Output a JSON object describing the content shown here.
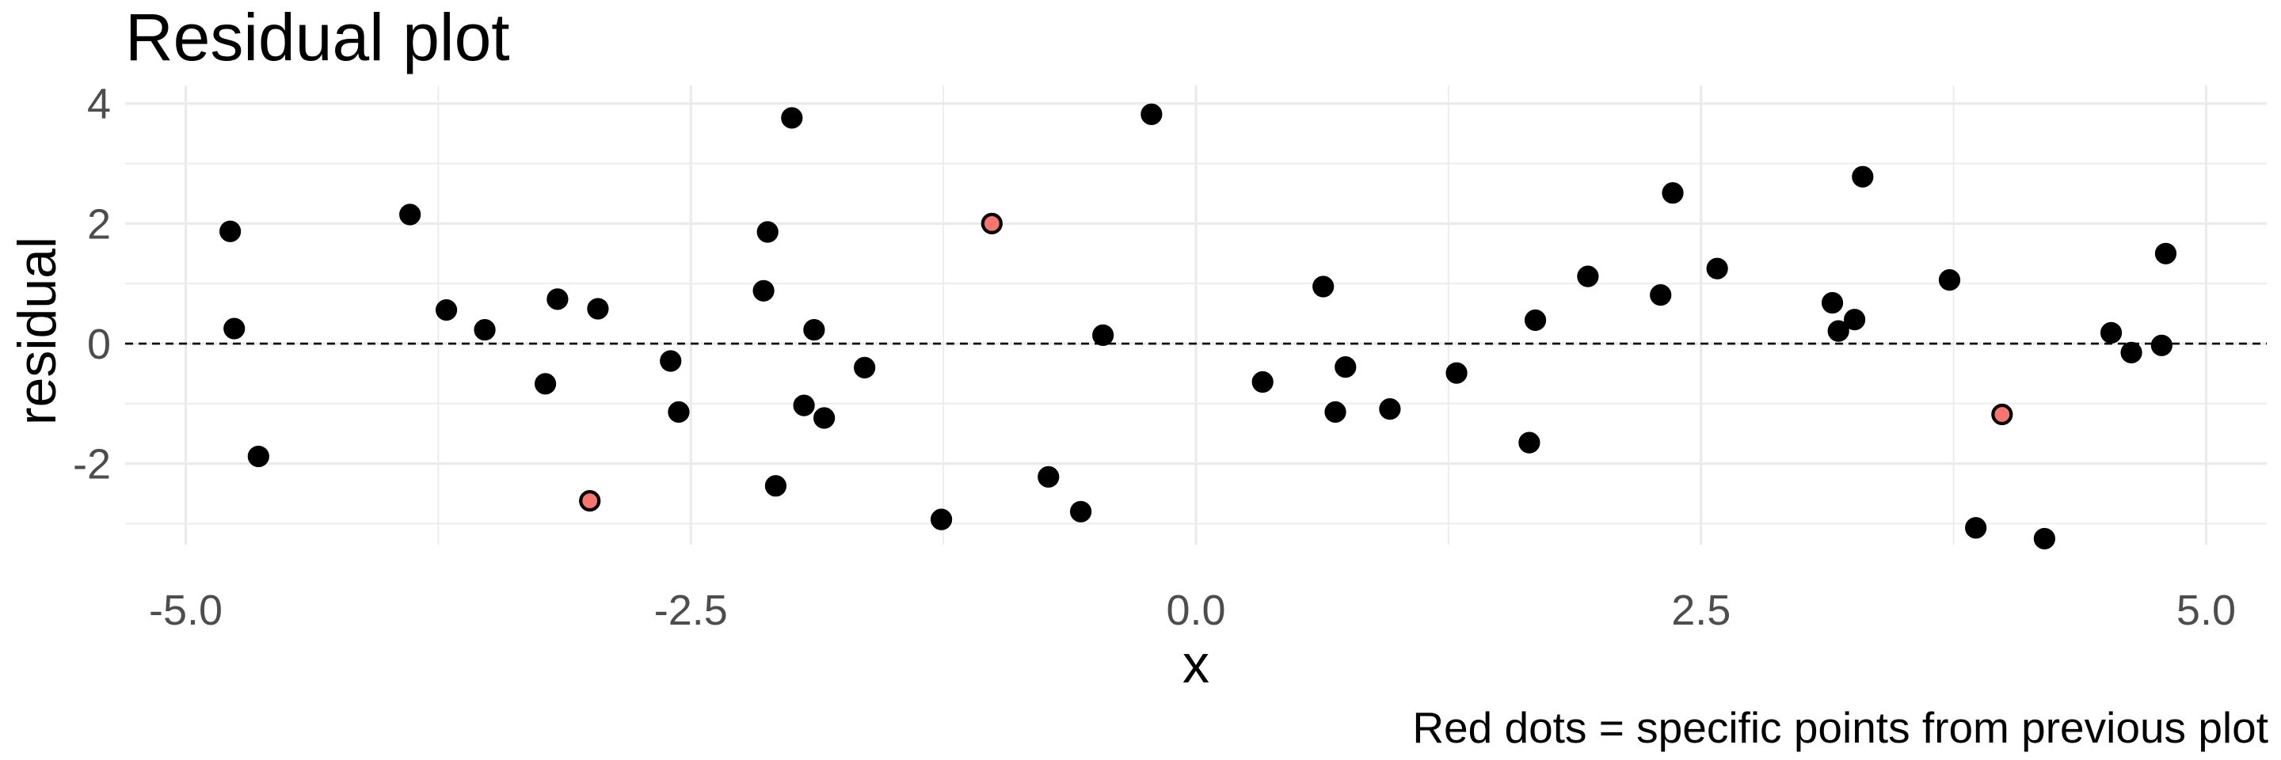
{
  "chart_data": {
    "type": "scatter",
    "title": "Residual plot",
    "xlabel": "x",
    "ylabel": "residual",
    "caption": "Red dots = specific points from previous plot",
    "xlim": [
      -5.3,
      5.3
    ],
    "ylim": [
      -3.35,
      4.3
    ],
    "x_ticks": [
      -5.0,
      -2.5,
      0.0,
      2.5,
      5.0
    ],
    "x_tick_labels": [
      "-5.0",
      "-2.5",
      "0.0",
      "2.5",
      "5.0"
    ],
    "x_minor_ticks": [
      -3.75,
      -1.25,
      1.25,
      3.75
    ],
    "y_ticks": [
      -2,
      0,
      2,
      4
    ],
    "y_tick_labels": [
      "-2",
      "0",
      "2",
      "4"
    ],
    "y_minor_ticks": [
      -3,
      -1,
      1,
      3
    ],
    "grid": true,
    "reference_line": {
      "y": 0,
      "style": "dashed",
      "color": "#000000"
    },
    "colors": {
      "default_point": "#000000",
      "highlight_point": "#f8766d",
      "grid": "#ebebeb"
    },
    "series": [
      {
        "role": "default",
        "points": [
          {
            "x": -4.78,
            "y": 1.87
          },
          {
            "x": -4.76,
            "y": 0.25
          },
          {
            "x": -4.64,
            "y": -1.88
          },
          {
            "x": -3.89,
            "y": 2.15
          },
          {
            "x": -3.71,
            "y": 0.56
          },
          {
            "x": -3.52,
            "y": 0.23
          },
          {
            "x": -3.22,
            "y": -0.67
          },
          {
            "x": -3.16,
            "y": 0.74
          },
          {
            "x": -2.96,
            "y": 0.58
          },
          {
            "x": -2.6,
            "y": -0.29
          },
          {
            "x": -2.56,
            "y": -1.14
          },
          {
            "x": -2.14,
            "y": 0.88
          },
          {
            "x": -2.12,
            "y": 1.86
          },
          {
            "x": -2.08,
            "y": -2.37
          },
          {
            "x": -2.0,
            "y": 3.76
          },
          {
            "x": -1.94,
            "y": -1.03
          },
          {
            "x": -1.89,
            "y": 0.23
          },
          {
            "x": -1.84,
            "y": -1.24
          },
          {
            "x": -1.64,
            "y": -0.4
          },
          {
            "x": -1.26,
            "y": -2.93
          },
          {
            "x": -0.73,
            "y": -2.22
          },
          {
            "x": -0.57,
            "y": -2.8
          },
          {
            "x": -0.46,
            "y": 0.14
          },
          {
            "x": -0.22,
            "y": 3.82
          },
          {
            "x": 0.33,
            "y": -0.64
          },
          {
            "x": 0.63,
            "y": 0.95
          },
          {
            "x": 0.69,
            "y": -1.14
          },
          {
            "x": 0.74,
            "y": -0.39
          },
          {
            "x": 0.96,
            "y": -1.09
          },
          {
            "x": 1.29,
            "y": -0.49
          },
          {
            "x": 1.65,
            "y": -1.65
          },
          {
            "x": 1.68,
            "y": 0.39
          },
          {
            "x": 1.94,
            "y": 1.12
          },
          {
            "x": 2.3,
            "y": 0.81
          },
          {
            "x": 2.36,
            "y": 2.51
          },
          {
            "x": 2.58,
            "y": 1.25
          },
          {
            "x": 3.15,
            "y": 0.68
          },
          {
            "x": 3.18,
            "y": 0.21
          },
          {
            "x": 3.26,
            "y": 0.4
          },
          {
            "x": 3.3,
            "y": 2.78
          },
          {
            "x": 3.73,
            "y": 1.06
          },
          {
            "x": 3.86,
            "y": -3.07
          },
          {
            "x": 4.2,
            "y": -3.25
          },
          {
            "x": 4.53,
            "y": 0.18
          },
          {
            "x": 4.63,
            "y": -0.15
          },
          {
            "x": 4.78,
            "y": -0.03
          },
          {
            "x": 4.8,
            "y": 1.5
          }
        ]
      },
      {
        "role": "highlight",
        "points": [
          {
            "x": -3.0,
            "y": -2.62
          },
          {
            "x": -1.01,
            "y": 2.0
          },
          {
            "x": 3.99,
            "y": -1.18
          }
        ]
      }
    ]
  }
}
